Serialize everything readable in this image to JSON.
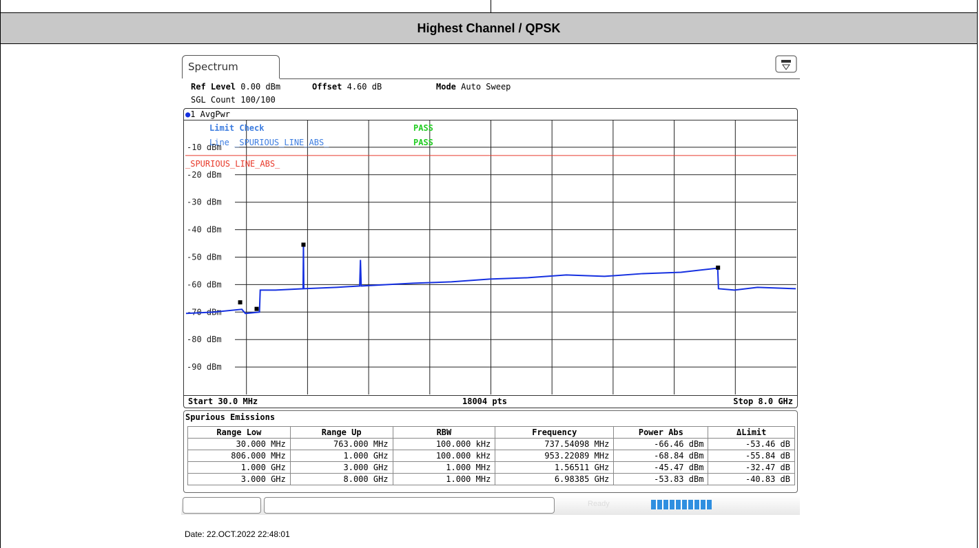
{
  "header": {
    "title": "Highest Channel / QPSK"
  },
  "spectrum": {
    "tab": "Spectrum",
    "info": [
      {
        "label": "Ref Level",
        "value": "0.00 dBm"
      },
      {
        "label": "Offset",
        "value": "4.60 dB"
      },
      {
        "label": "Mode",
        "value": "Auto Sweep"
      }
    ],
    "sgl_count": "SGL Count 100/100",
    "trace_label": "1 AvgPwr",
    "limit_check": {
      "label": "Limit Check",
      "result": "PASS",
      "line_label": "Line _SPURIOUS_LINE_ABS_",
      "line_result": "PASS"
    },
    "footer": {
      "start": "Start 30.0 MHz",
      "points": "18004 pts",
      "stop": "Stop 8.0 GHz"
    },
    "status": "Ready"
  },
  "chart_data": {
    "type": "line",
    "xlim": [
      0.03,
      8
    ],
    "ylim": [
      -100,
      0
    ],
    "grid_divisions": 10,
    "grid": true,
    "yticks": [
      {
        "value": -10,
        "label": "-10 dBm"
      },
      {
        "value": -20,
        "label": "-20 dBm"
      },
      {
        "value": -30,
        "label": "-30 dBm"
      },
      {
        "value": -40,
        "label": "-40 dBm"
      },
      {
        "value": -50,
        "label": "-50 dBm"
      },
      {
        "value": -60,
        "label": "-60 dBm"
      },
      {
        "value": -70,
        "label": "-70 dBm"
      },
      {
        "value": -80,
        "label": "-80 dBm"
      },
      {
        "value": -90,
        "label": "-90 dBm"
      }
    ],
    "limit_line": {
      "name": "_SPURIOUS_LINE_ABS_",
      "value": -13,
      "color": "#e8392a"
    },
    "series": [
      {
        "name": "1 AvgPwr",
        "color": "#1530e0",
        "x": [
          0.03,
          0.4,
          0.76,
          0.806,
          0.99,
          1.0,
          1.2,
          1.56,
          1.565,
          1.57,
          2.0,
          2.3,
          2.31,
          2.32,
          3.0,
          3.5,
          4.0,
          4.5,
          5.0,
          5.5,
          6.0,
          6.5,
          6.98,
          6.99,
          7.2,
          7.5,
          8.0
        ],
        "values": [
          -70.5,
          -70,
          -69,
          -70.5,
          -70,
          -62,
          -62,
          -61.5,
          -45.5,
          -61.5,
          -61,
          -60.5,
          -51,
          -60.5,
          -59.5,
          -59,
          -58,
          -57.5,
          -56.5,
          -57,
          -56,
          -55.5,
          -54,
          -61.5,
          -62,
          -61,
          -61.5
        ]
      }
    ],
    "markers": {
      "x": [
        0.73754098,
        0.95322089,
        1.56511,
        6.98385
      ],
      "values": [
        -66.46,
        -68.84,
        -45.47,
        -53.83
      ]
    }
  },
  "table": {
    "title": "Spurious Emissions",
    "columns": [
      "Range Low",
      "Range Up",
      "RBW",
      "Frequency",
      "Power Abs",
      "ΔLimit"
    ],
    "rows": [
      [
        "30.000 MHz",
        "763.000 MHz",
        "100.000 kHz",
        "737.54098 MHz",
        "-66.46 dBm",
        "-53.46 dB"
      ],
      [
        "806.000 MHz",
        "1.000 GHz",
        "100.000 kHz",
        "953.22089 MHz",
        "-68.84 dBm",
        "-55.84 dB"
      ],
      [
        "1.000 GHz",
        "3.000 GHz",
        "1.000 MHz",
        "1.56511 GHz",
        "-45.47 dBm",
        "-32.47 dB"
      ],
      [
        "3.000 GHz",
        "8.000 GHz",
        "1.000 MHz",
        "6.98385 GHz",
        "-53.83 dBm",
        "-40.83 dB"
      ]
    ]
  },
  "date": "Date: 22.OCT.2022  22:48:01"
}
